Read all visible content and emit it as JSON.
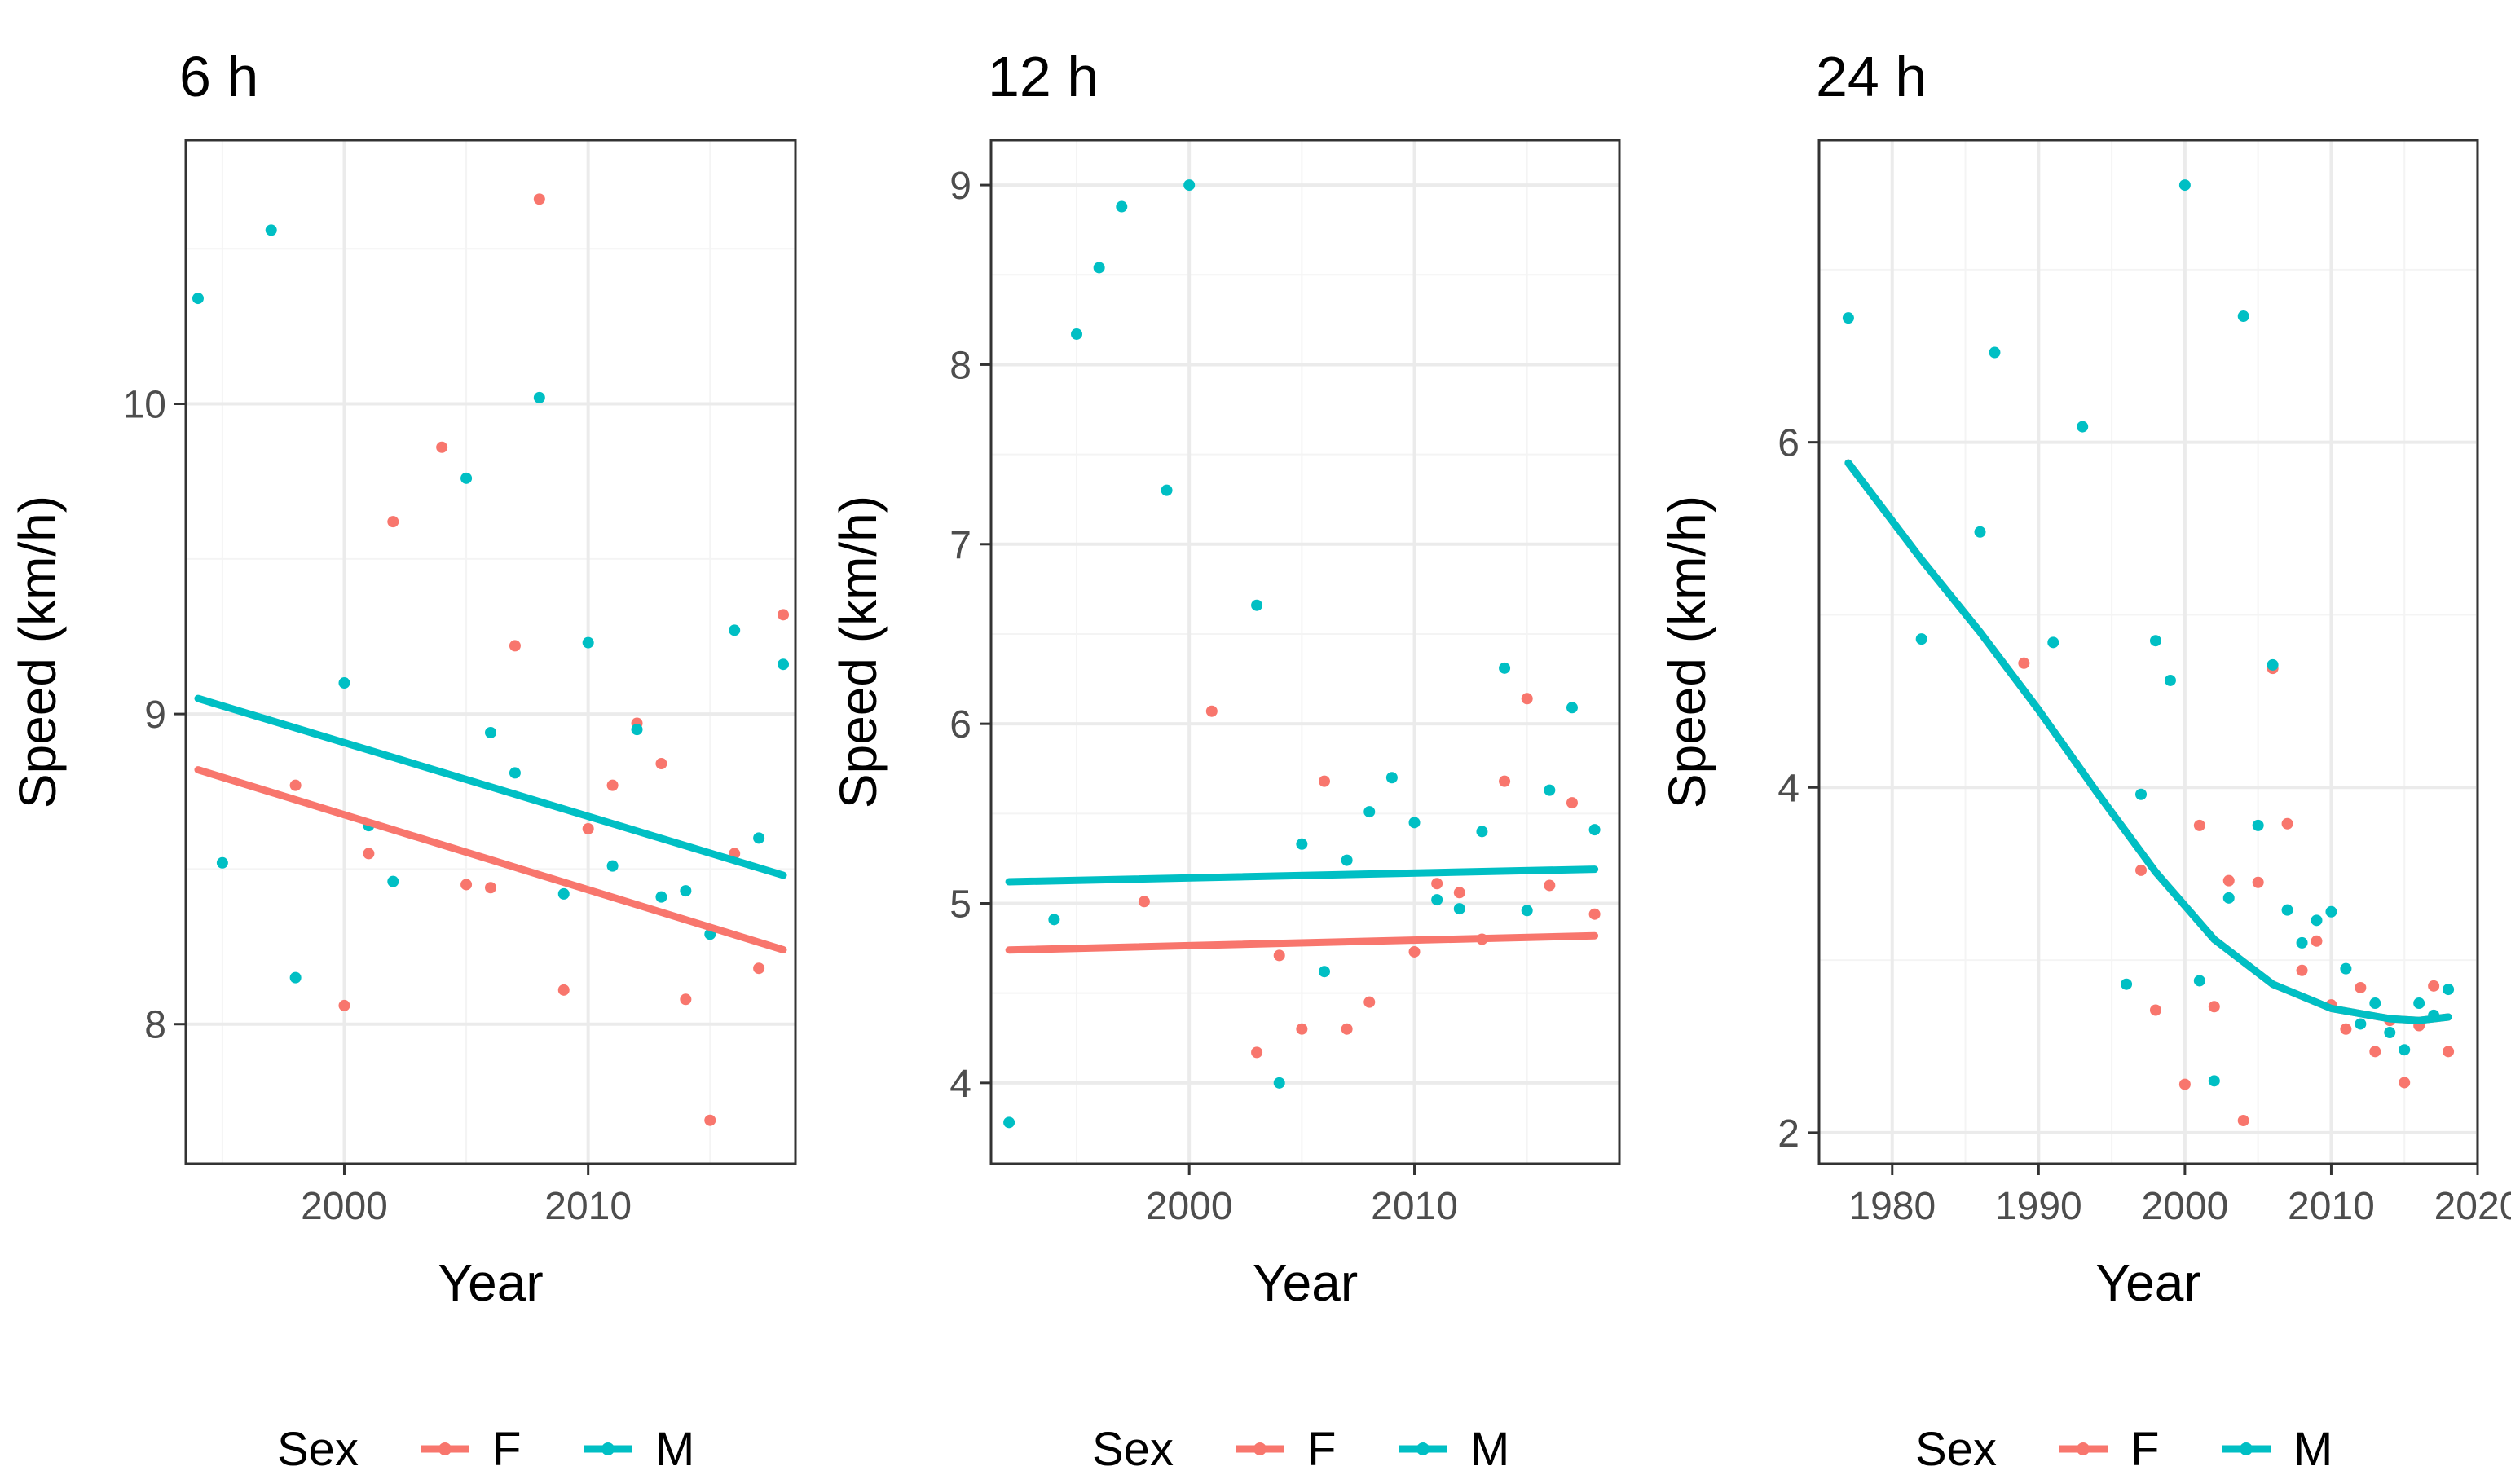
{
  "colors": {
    "F": "#F8766D",
    "M": "#00BFC4"
  },
  "legend": {
    "title": "Sex",
    "labels": [
      "F",
      "M"
    ]
  },
  "chart_data": [
    {
      "type": "scatter",
      "title": "6 h",
      "xlabel": "Year",
      "ylabel": "Speed (km/h)",
      "xlim": [
        1993.5,
        2018.5
      ],
      "ylim": [
        7.55,
        10.85
      ],
      "xticks": [
        2000,
        2010
      ],
      "yticks": [
        8,
        9,
        10
      ],
      "fit": "linear",
      "series": [
        {
          "name": "F",
          "points": [
            [
              1998,
              8.77
            ],
            [
              2000,
              8.06
            ],
            [
              2001,
              8.55
            ],
            [
              2002,
              9.62
            ],
            [
              2004,
              9.86
            ],
            [
              2005,
              8.45
            ],
            [
              2006,
              8.44
            ],
            [
              2007,
              9.22
            ],
            [
              2008,
              10.66
            ],
            [
              2009,
              8.11
            ],
            [
              2010,
              8.63
            ],
            [
              2011,
              8.77
            ],
            [
              2012,
              8.97
            ],
            [
              2013,
              8.84
            ],
            [
              2014,
              8.08
            ],
            [
              2015,
              7.69
            ],
            [
              2016,
              8.55
            ],
            [
              2017,
              8.18
            ],
            [
              2018,
              9.32
            ]
          ],
          "line": [
            [
              1994,
              8.82
            ],
            [
              2018,
              8.24
            ]
          ]
        },
        {
          "name": "M",
          "points": [
            [
              1994,
              10.34
            ],
            [
              1995,
              8.52
            ],
            [
              1997,
              10.56
            ],
            [
              1998,
              8.15
            ],
            [
              2000,
              9.1
            ],
            [
              2001,
              8.64
            ],
            [
              2002,
              8.46
            ],
            [
              2005,
              9.76
            ],
            [
              2006,
              8.94
            ],
            [
              2007,
              8.81
            ],
            [
              2008,
              10.02
            ],
            [
              2009,
              8.42
            ],
            [
              2010,
              9.23
            ],
            [
              2011,
              8.51
            ],
            [
              2012,
              8.95
            ],
            [
              2013,
              8.41
            ],
            [
              2014,
              8.43
            ],
            [
              2015,
              8.29
            ],
            [
              2016,
              9.27
            ],
            [
              2017,
              8.6
            ],
            [
              2018,
              9.16
            ]
          ],
          "line": [
            [
              1994,
              9.05
            ],
            [
              2018,
              8.48
            ]
          ]
        }
      ]
    },
    {
      "type": "scatter",
      "title": "12 h",
      "xlabel": "Year",
      "ylabel": "Speed (km/h)",
      "xlim": [
        1991.2,
        2019.1
      ],
      "ylim": [
        3.55,
        9.25
      ],
      "xticks": [
        2000,
        2010
      ],
      "yticks": [
        4,
        5,
        6,
        7,
        8,
        9
      ],
      "fit": "linear",
      "series": [
        {
          "name": "F",
          "points": [
            [
              1998,
              5.01
            ],
            [
              2001,
              6.07
            ],
            [
              2003,
              4.17
            ],
            [
              2004,
              4.71
            ],
            [
              2005,
              4.3
            ],
            [
              2006,
              5.68
            ],
            [
              2007,
              4.3
            ],
            [
              2008,
              4.45
            ],
            [
              2010,
              4.73
            ],
            [
              2011,
              5.11
            ],
            [
              2012,
              5.06
            ],
            [
              2013,
              4.8
            ],
            [
              2014,
              5.68
            ],
            [
              2015,
              6.14
            ],
            [
              2016,
              5.1
            ],
            [
              2017,
              5.56
            ],
            [
              2018,
              4.94
            ]
          ],
          "line": [
            [
              1992,
              4.74
            ],
            [
              2018,
              4.82
            ]
          ]
        },
        {
          "name": "M",
          "points": [
            [
              1992,
              3.78
            ],
            [
              1994,
              4.91
            ],
            [
              1995,
              8.17
            ],
            [
              1996,
              8.54
            ],
            [
              1997,
              8.88
            ],
            [
              1999,
              7.3
            ],
            [
              2000,
              9.0
            ],
            [
              2003,
              6.66
            ],
            [
              2004,
              4.0
            ],
            [
              2005,
              5.33
            ],
            [
              2006,
              4.62
            ],
            [
              2007,
              5.24
            ],
            [
              2008,
              5.51
            ],
            [
              2009,
              5.7
            ],
            [
              2010,
              5.45
            ],
            [
              2011,
              5.02
            ],
            [
              2012,
              4.97
            ],
            [
              2013,
              5.4
            ],
            [
              2014,
              6.31
            ],
            [
              2015,
              4.96
            ],
            [
              2016,
              5.63
            ],
            [
              2017,
              6.09
            ],
            [
              2018,
              5.41
            ]
          ],
          "line": [
            [
              1992,
              5.12
            ],
            [
              2018,
              5.19
            ]
          ]
        }
      ]
    },
    {
      "type": "scatter",
      "title": "24 h",
      "xlabel": "Year",
      "ylabel": "Speed (km/h)",
      "xlim": [
        1975.0,
        2020.0
      ],
      "ylim": [
        1.82,
        7.75
      ],
      "xticks": [
        1980,
        1990,
        2000,
        2010,
        2020
      ],
      "yticks": [
        2,
        4,
        6
      ],
      "fit": "loess",
      "series": [
        {
          "name": "F",
          "points": [
            [
              1989,
              4.72
            ],
            [
              1997,
              3.52
            ],
            [
              1998,
              2.71
            ],
            [
              2000,
              2.28
            ],
            [
              2001,
              3.78
            ],
            [
              2002,
              2.73
            ],
            [
              2003,
              3.46
            ],
            [
              2004,
              2.07
            ],
            [
              2005,
              3.45
            ],
            [
              2006,
              4.69
            ],
            [
              2007,
              3.79
            ],
            [
              2008,
              2.94
            ],
            [
              2009,
              3.11
            ],
            [
              2010,
              2.74
            ],
            [
              2011,
              2.6
            ],
            [
              2012,
              2.84
            ],
            [
              2013,
              2.47
            ],
            [
              2014,
              2.65
            ],
            [
              2015,
              2.29
            ],
            [
              2016,
              2.62
            ],
            [
              2017,
              2.85
            ],
            [
              2018,
              2.47
            ]
          ],
          "line": [
            [
              1977,
              5.88
            ],
            [
              1982,
              5.32
            ],
            [
              1986,
              4.9
            ],
            [
              1990,
              4.45
            ],
            [
              1994,
              3.97
            ],
            [
              1998,
              3.51
            ],
            [
              2002,
              3.12
            ],
            [
              2006,
              2.86
            ],
            [
              2010,
              2.72
            ],
            [
              2014,
              2.66
            ],
            [
              2016,
              2.65
            ],
            [
              2018,
              2.67
            ]
          ]
        },
        {
          "name": "M",
          "points": [
            [
              1977,
              6.72
            ],
            [
              1982,
              4.86
            ],
            [
              1986,
              5.48
            ],
            [
              1987,
              6.52
            ],
            [
              1991,
              4.84
            ],
            [
              1993,
              6.09
            ],
            [
              1996,
              2.86
            ],
            [
              1997,
              3.96
            ],
            [
              1998,
              4.85
            ],
            [
              1999,
              4.62
            ],
            [
              2000,
              7.49
            ],
            [
              2001,
              2.88
            ],
            [
              2002,
              2.3
            ],
            [
              2003,
              3.36
            ],
            [
              2004,
              6.73
            ],
            [
              2005,
              3.78
            ],
            [
              2006,
              4.71
            ],
            [
              2007,
              3.29
            ],
            [
              2008,
              3.1
            ],
            [
              2009,
              3.23
            ],
            [
              2010,
              3.28
            ],
            [
              2011,
              2.95
            ],
            [
              2012,
              2.63
            ],
            [
              2013,
              2.75
            ],
            [
              2014,
              2.58
            ],
            [
              2015,
              2.48
            ],
            [
              2016,
              2.75
            ],
            [
              2017,
              2.68
            ],
            [
              2018,
              2.83
            ]
          ],
          "line": [
            [
              1977,
              5.88
            ],
            [
              1982,
              5.32
            ],
            [
              1986,
              4.9
            ],
            [
              1990,
              4.45
            ],
            [
              1994,
              3.97
            ],
            [
              1998,
              3.51
            ],
            [
              2002,
              3.12
            ],
            [
              2006,
              2.86
            ],
            [
              2010,
              2.72
            ],
            [
              2014,
              2.66
            ],
            [
              2016,
              2.65
            ],
            [
              2018,
              2.67
            ]
          ]
        }
      ]
    }
  ]
}
